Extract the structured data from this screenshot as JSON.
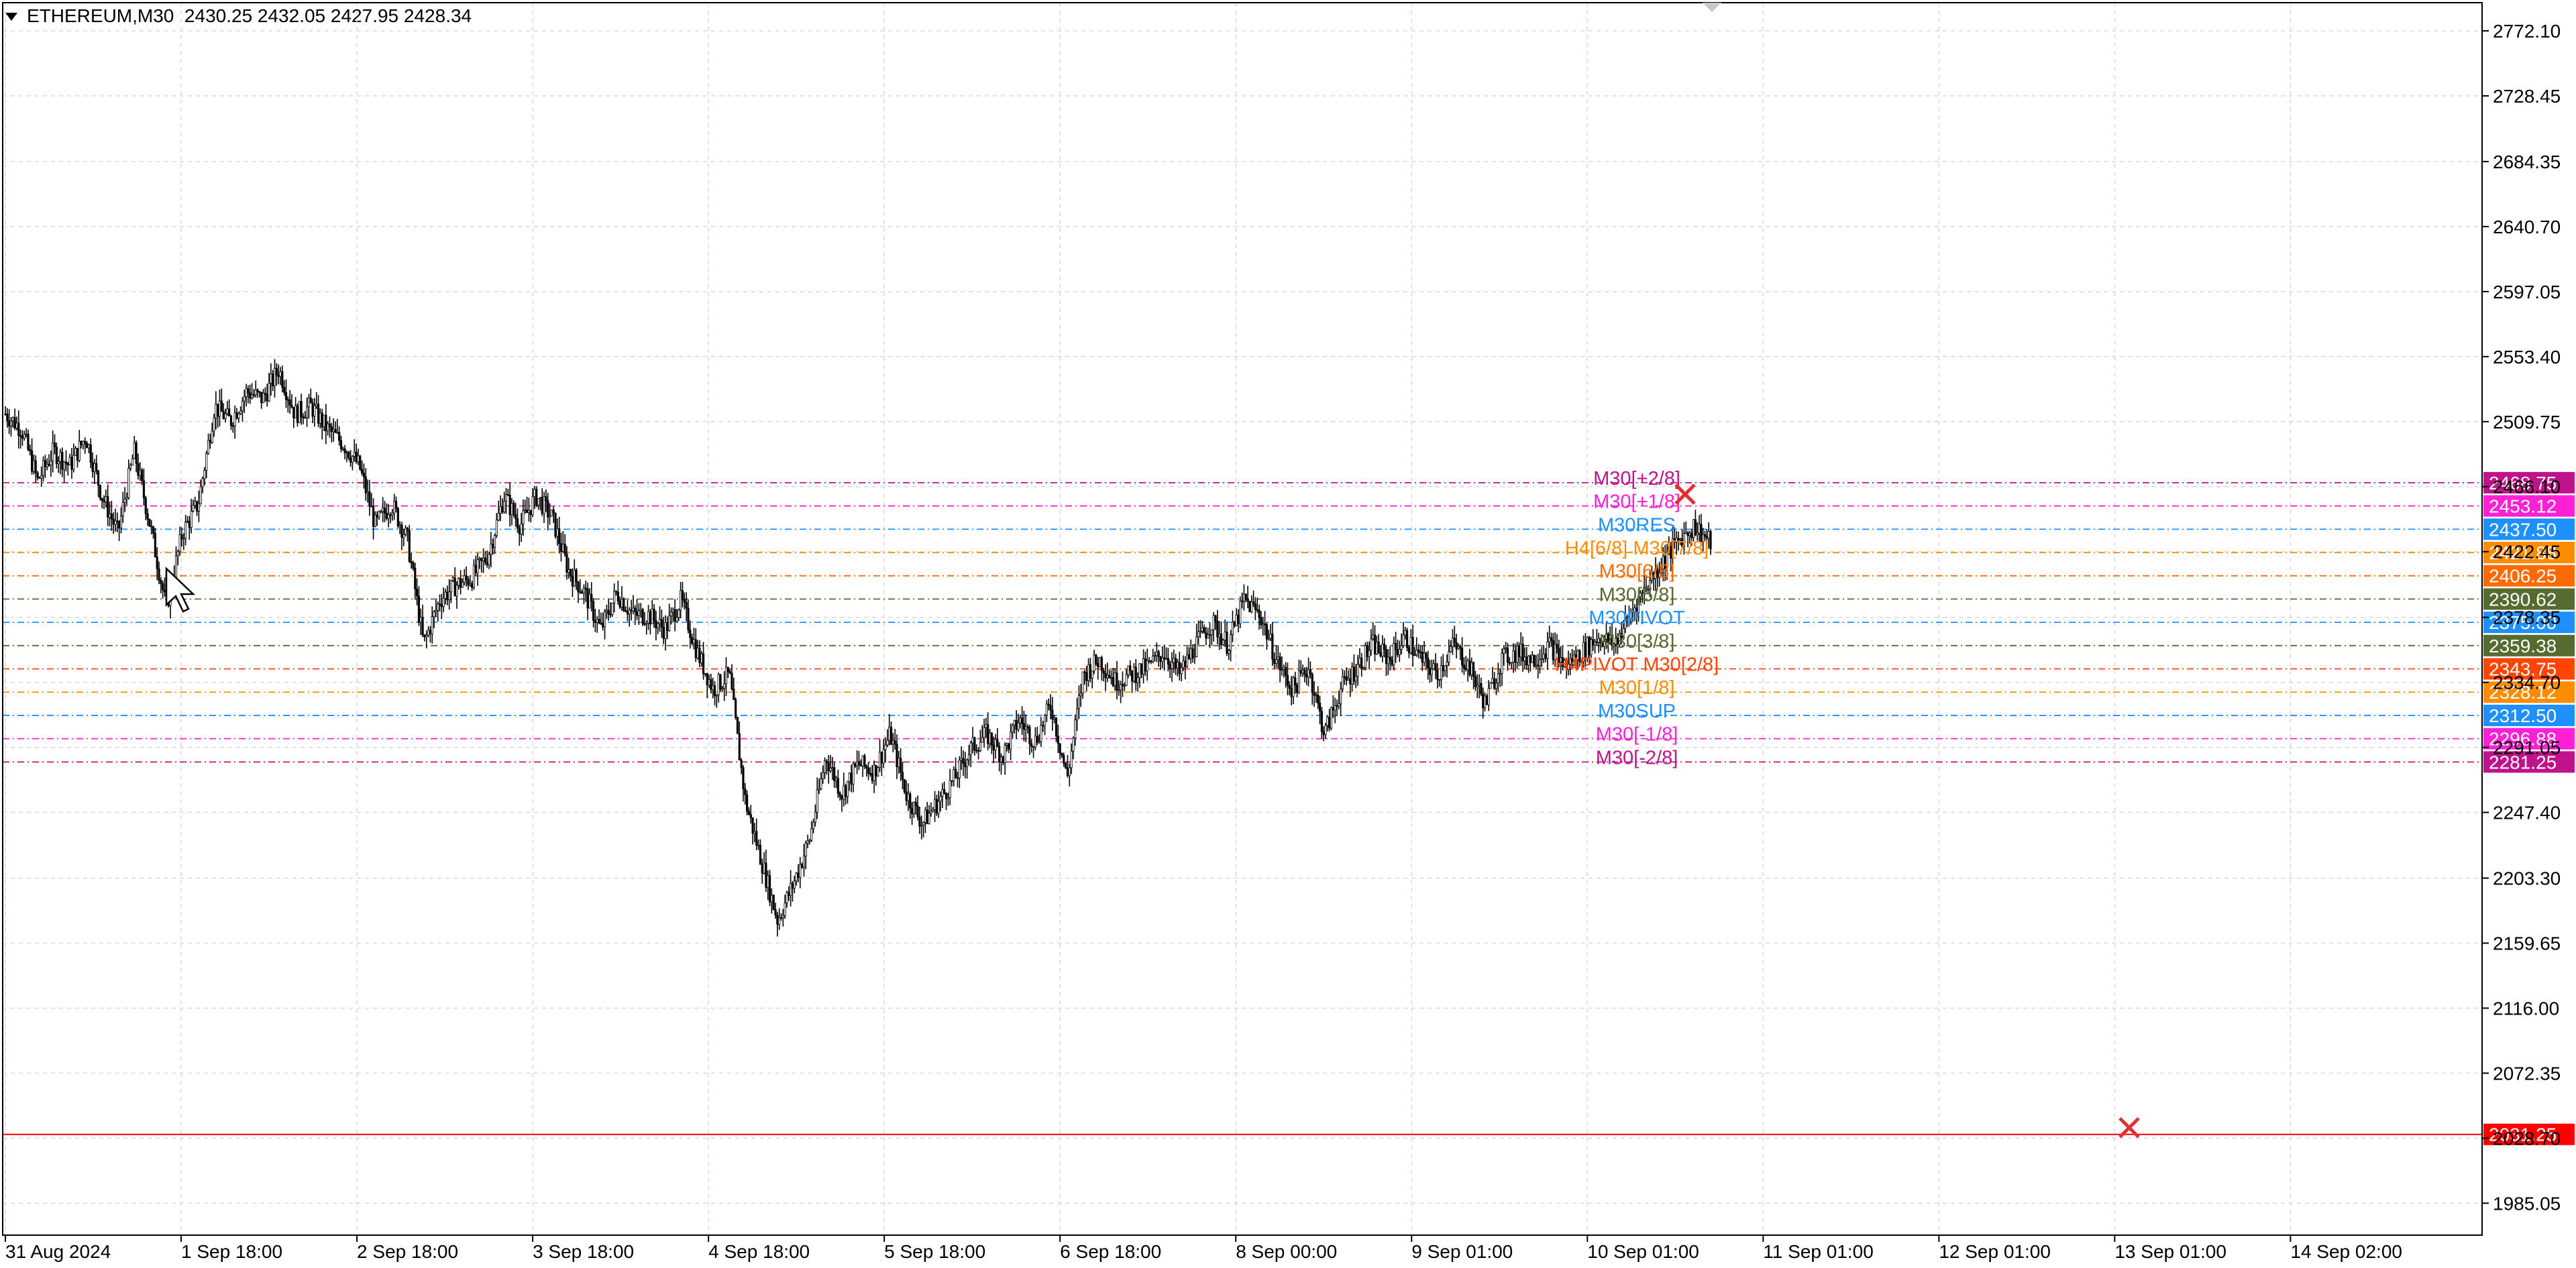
{
  "window": {
    "symbol": "ETHEREUM",
    "timeframe": "M30",
    "header_line": "ETHEREUM,M30  2430.25 2432.05 2427.95 2428.34"
  },
  "colors": {
    "background": "#ffffff",
    "grid": "#d9d9d9",
    "candle": "#000000",
    "axis_text": "#000000",
    "red_line": "#ff0000"
  },
  "chart_data": {
    "type": "candlestick",
    "instrument": "ETHEREUM",
    "timeframe": "M30",
    "ohlc_last": {
      "open": 2430.25,
      "high": 2432.05,
      "low": 2427.95,
      "close": 2428.34
    },
    "ylim": [
      1963.6,
      2791.0
    ],
    "y_ticks": [
      "2772.10",
      "2728.45",
      "2684.35",
      "2640.70",
      "2597.05",
      "2553.40",
      "2509.75",
      "2466.10",
      "2422.45",
      "2378.35",
      "2334.70",
      "2291.05",
      "2247.40",
      "2203.30",
      "2159.65",
      "2116.00",
      "2072.35",
      "2028.70",
      "1985.05"
    ],
    "x_ticks": [
      "31 Aug 2024",
      "1 Sep 18:00",
      "2 Sep 18:00",
      "3 Sep 18:00",
      "4 Sep 18:00",
      "5 Sep 18:00",
      "6 Sep 18:00",
      "8 Sep 00:00",
      "9 Sep 01:00",
      "10 Sep 01:00",
      "11 Sep 01:00",
      "12 Sep 01:00",
      "13 Sep 01:00",
      "14 Sep 02:00"
    ],
    "price_path": [
      {
        "label": "31 Aug 2024",
        "price": 2515
      },
      {
        "price": 2505
      },
      {
        "price": 2470
      },
      {
        "price": 2490
      },
      {
        "price": 2480
      },
      {
        "price": 2500
      },
      {
        "price": 2460
      },
      {
        "price": 2435
      },
      {
        "price": 2490
      },
      {
        "price": 2440
      },
      {
        "label": "1 Sep 18:00",
        "price": 2385
      },
      {
        "price": 2435
      },
      {
        "price": 2455
      },
      {
        "price": 2520
      },
      {
        "price": 2510
      },
      {
        "price": 2530
      },
      {
        "price": 2525
      },
      {
        "price": 2545
      },
      {
        "price": 2515
      },
      {
        "price": 2520
      },
      {
        "label": "2 Sep 18:00",
        "price": 2505
      },
      {
        "price": 2495
      },
      {
        "price": 2480
      },
      {
        "price": 2440
      },
      {
        "price": 2455
      },
      {
        "price": 2430
      },
      {
        "price": 2360
      },
      {
        "price": 2390
      },
      {
        "price": 2400
      },
      {
        "price": 2405
      },
      {
        "label": "3 Sep 18:00",
        "price": 2420
      },
      {
        "price": 2460
      },
      {
        "price": 2440
      },
      {
        "price": 2460
      },
      {
        "price": 2445
      },
      {
        "price": 2410
      },
      {
        "price": 2395
      },
      {
        "price": 2370
      },
      {
        "price": 2395
      },
      {
        "price": 2380
      },
      {
        "label": "4 Sep 18:00",
        "price": 2380
      },
      {
        "price": 2370
      },
      {
        "price": 2390
      },
      {
        "price": 2355
      },
      {
        "price": 2330
      },
      {
        "price": 2340
      },
      {
        "price": 2255
      },
      {
        "price": 2215
      },
      {
        "price": 2175
      },
      {
        "price": 2200
      },
      {
        "label": "6 Sep 18:00",
        "price": 2230
      },
      {
        "price": 2285
      },
      {
        "price": 2260
      },
      {
        "price": 2280
      },
      {
        "price": 2275
      },
      {
        "price": 2300
      },
      {
        "price": 2260
      },
      {
        "price": 2240
      },
      {
        "price": 2255
      },
      {
        "price": 2270
      },
      {
        "label": "8 Sep 00:00",
        "price": 2290
      },
      {
        "price": 2300
      },
      {
        "price": 2285
      },
      {
        "price": 2310
      },
      {
        "price": 2295
      },
      {
        "price": 2320
      },
      {
        "price": 2270
      },
      {
        "price": 2340
      },
      {
        "price": 2350
      },
      {
        "price": 2335
      },
      {
        "label": "10 Sep 01:00",
        "price": 2340
      },
      {
        "price": 2345
      },
      {
        "price": 2355
      },
      {
        "price": 2340
      },
      {
        "price": 2360
      },
      {
        "price": 2375
      },
      {
        "price": 2360
      },
      {
        "price": 2390
      },
      {
        "price": 2380
      },
      {
        "price": 2350
      },
      {
        "label": "11 Sep 01:00",
        "price": 2330
      },
      {
        "price": 2345
      },
      {
        "price": 2300
      },
      {
        "price": 2330
      },
      {
        "price": 2345
      },
      {
        "price": 2360
      },
      {
        "price": 2350
      },
      {
        "price": 2365
      },
      {
        "price": 2350
      },
      {
        "price": 2340
      },
      {
        "label": "12 Sep 01:00",
        "price": 2360
      },
      {
        "price": 2345
      },
      {
        "price": 2320
      },
      {
        "price": 2350
      },
      {
        "price": 2355
      },
      {
        "price": 2350
      },
      {
        "price": 2360
      },
      {
        "price": 2345
      },
      {
        "price": 2355
      },
      {
        "price": 2365
      },
      {
        "label": "13 Sep 01:00",
        "price": 2360
      },
      {
        "price": 2380
      },
      {
        "price": 2400
      },
      {
        "price": 2415
      },
      {
        "price": 2430
      },
      {
        "price": 2440
      },
      {
        "label": "14 Sep 02:00",
        "price": 2428
      }
    ],
    "levels": [
      {
        "label": "M30[+2/8]",
        "value": "2468.75",
        "color": "#c0128a"
      },
      {
        "label": "M30[+1/8]",
        "value": "2453.12",
        "color": "#ff1fd5"
      },
      {
        "label": "M30RES",
        "value": "2437.50",
        "color": "#1e90ff"
      },
      {
        "label": "H4[6/8] M30[7/8]",
        "value": "2421.88",
        "color": "#ff8c00"
      },
      {
        "label": "M30[6/8]",
        "value": "2406.25",
        "color": "#ff6a00"
      },
      {
        "label": "M30[5/8]",
        "value": "2390.62",
        "color": "#556b2f"
      },
      {
        "label": "M30PIVOT",
        "value": "2375.00",
        "color": "#1e90ff"
      },
      {
        "label": "M30[3/8]",
        "value": "2359.38",
        "color": "#556b2f"
      },
      {
        "label": "H4PIVOT M30[2/8]",
        "value": "2343.75",
        "color": "#ff4500"
      },
      {
        "label": "M30[1/8]",
        "value": "2328.12",
        "color": "#ff8c00"
      },
      {
        "label": "M30SUP",
        "value": "2312.50",
        "color": "#1e90ff"
      },
      {
        "label": "M30[-1/8]",
        "value": "2296.88",
        "color": "#ff1fd5"
      },
      {
        "label": "M30[-2/8]",
        "value": "2281.25",
        "color": "#c0128a"
      }
    ],
    "horizontal_line": {
      "value": "2031.25",
      "color": "#ff0000"
    },
    "markers": [
      "cross-marker-top",
      "cross-marker-bottom"
    ],
    "grid": true
  },
  "cursor": {
    "icon": "mouse-pointer-icon"
  }
}
